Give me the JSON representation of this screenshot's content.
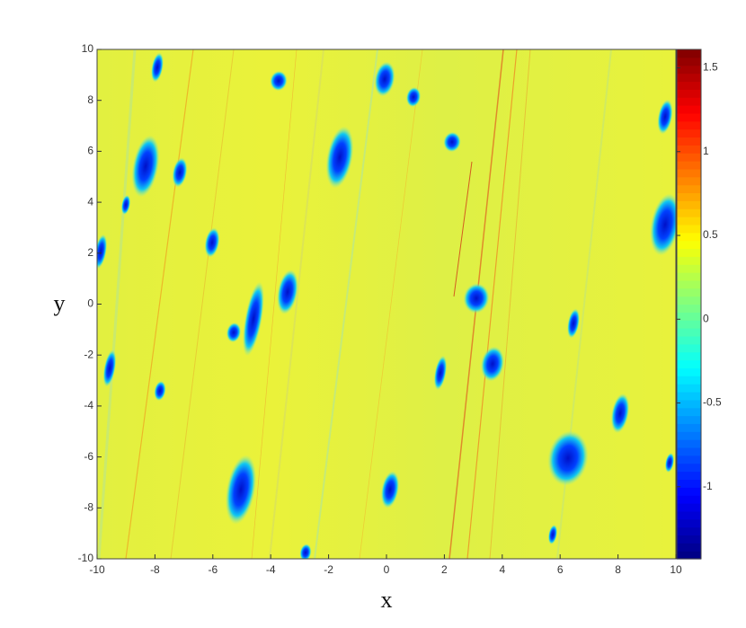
{
  "chart_data": {
    "type": "heatmap",
    "xlabel": "x",
    "ylabel": "y",
    "xlim": [
      -10,
      10
    ],
    "ylim": [
      -10,
      10
    ],
    "xticks": [
      -10,
      -8,
      -6,
      -4,
      -2,
      0,
      2,
      4,
      6,
      8,
      10
    ],
    "yticks": [
      -10,
      -8,
      -6,
      -4,
      -2,
      0,
      2,
      4,
      6,
      8,
      10
    ],
    "colormap": "jet",
    "clim": [
      -1.43,
      1.61
    ],
    "cticks": [
      -1,
      -0.5,
      0,
      0.5,
      1,
      1.5
    ]
  }
}
